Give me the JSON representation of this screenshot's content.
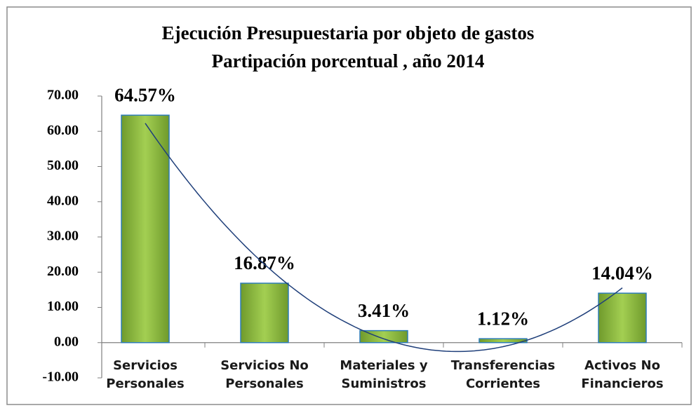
{
  "chart_data": {
    "type": "bar",
    "title": "Ejecución Presupuestaria por objeto de gastos",
    "subtitle": "Partipación porcentual , año 2014",
    "categories": [
      "Servicios Personales",
      "Servicios No Personales",
      "Materiales y Suministros",
      "Transferencias Corrientes",
      "Activos No Financieros"
    ],
    "values": [
      64.57,
      16.87,
      3.41,
      1.12,
      14.04
    ],
    "value_labels": [
      "64.57%",
      "16.87%",
      "3.41%",
      "1.12%",
      "14.04%"
    ],
    "color": "#8ab83e",
    "ylim": [
      -10,
      70
    ],
    "yticks": [
      {
        "value": -10,
        "label": "-10.00"
      },
      {
        "value": 0,
        "label": "0.00"
      },
      {
        "value": 10,
        "label": "10.00"
      },
      {
        "value": 20,
        "label": "20.00"
      },
      {
        "value": 30,
        "label": "30.00"
      },
      {
        "value": 40,
        "label": "40.00"
      },
      {
        "value": 50,
        "label": "50.00"
      },
      {
        "value": 60,
        "label": "60.00"
      },
      {
        "value": 70,
        "label": "70.00"
      }
    ],
    "grid": false,
    "trendline": "polynomial",
    "trendline_order": 2,
    "trendline_color": "#1f3f7a"
  }
}
